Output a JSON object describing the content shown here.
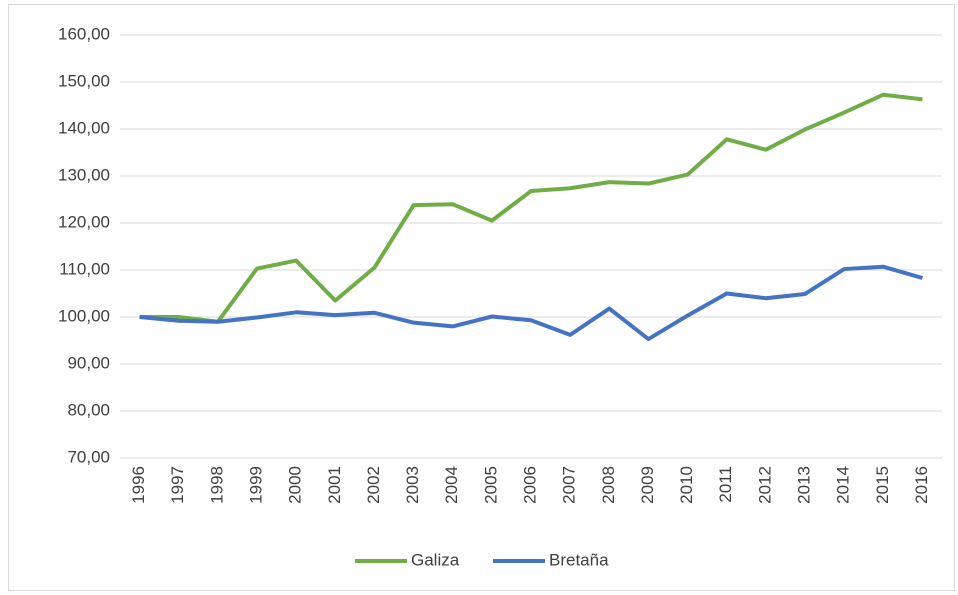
{
  "chart_data": {
    "type": "line",
    "categories": [
      "1996",
      "1997",
      "1998",
      "1999",
      "2000",
      "2001",
      "2002",
      "2003",
      "2004",
      "2005",
      "2006",
      "2007",
      "2008",
      "2009",
      "2010",
      "2011",
      "2012",
      "2013",
      "2014",
      "2015",
      "2016"
    ],
    "series": [
      {
        "name": "Galiza",
        "color": "#70ad47",
        "values": [
          100,
          100,
          99,
          110.3,
          112,
          103.5,
          110.5,
          123.8,
          124,
          120.5,
          126.8,
          127.4,
          128.7,
          128.4,
          130.3,
          137.8,
          135.6,
          139.9,
          143.5,
          147.3,
          146.3
        ]
      },
      {
        "name": "Bretaña",
        "color": "#4472c4",
        "values": [
          100,
          99.2,
          99,
          99.9,
          101,
          100.4,
          100.9,
          98.8,
          98,
          100.1,
          99.3,
          96.2,
          101.8,
          95.3,
          100.3,
          105,
          104,
          104.9,
          110.2,
          110.7,
          108.3
        ]
      }
    ],
    "ylim": [
      70,
      160
    ],
    "yticks": [
      {
        "value": 70,
        "label": "70,00"
      },
      {
        "value": 80,
        "label": "80,00"
      },
      {
        "value": 90,
        "label": "90,00"
      },
      {
        "value": 100,
        "label": "100,00"
      },
      {
        "value": 110,
        "label": "110,00"
      },
      {
        "value": 120,
        "label": "120,00"
      },
      {
        "value": 130,
        "label": "130,00"
      },
      {
        "value": 140,
        "label": "140,00"
      },
      {
        "value": 150,
        "label": "150,00"
      },
      {
        "value": 160,
        "label": "160,00"
      }
    ],
    "grid": true,
    "legend": "bottom"
  }
}
